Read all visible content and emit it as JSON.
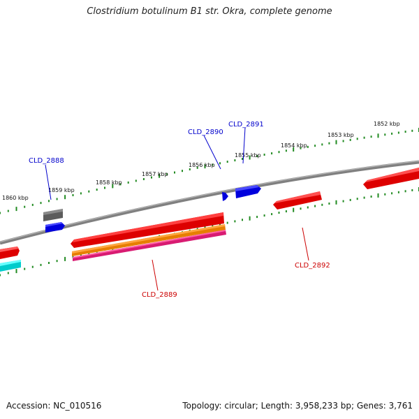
{
  "title": "Clostridium botulinum B1 str. Okra, complete genome",
  "footer": {
    "accession": "Accession: NC_010516",
    "summary": "Topology: circular; Length: 3,958,233 bp; Genes: 3,761"
  },
  "colors": {
    "backbone": "#808080",
    "ticks": "#228B22",
    "forward_label": "#0000cc",
    "reverse_label": "#cc0000",
    "cds_forward": "#0000ff",
    "cds_reverse": "#ff0000",
    "gray_feature": "#666666",
    "orange_feature": "#ff8c00",
    "magenta_feature": "#e0207a",
    "cyan_feature": "#00e5e5"
  },
  "scale_labels": [
    {
      "text": "1852 kbp",
      "kbp": 1852
    },
    {
      "text": "1853 kbp",
      "kbp": 1853
    },
    {
      "text": "1854 kbp",
      "kbp": 1854
    },
    {
      "text": "1855 kbp",
      "kbp": 1855
    },
    {
      "text": "1856 kbp",
      "kbp": 1856
    },
    {
      "text": "1857 kbp",
      "kbp": 1857
    },
    {
      "text": "1858 kbp",
      "kbp": 1858
    },
    {
      "text": "1859 kbp",
      "kbp": 1859
    },
    {
      "text": "1860 kbp",
      "kbp": 1860
    }
  ],
  "gene_labels": {
    "forward": [
      "CLD_2888",
      "CLD_2890",
      "CLD_2891"
    ],
    "reverse": [
      "CLD_2889",
      "CLD_2892"
    ]
  }
}
